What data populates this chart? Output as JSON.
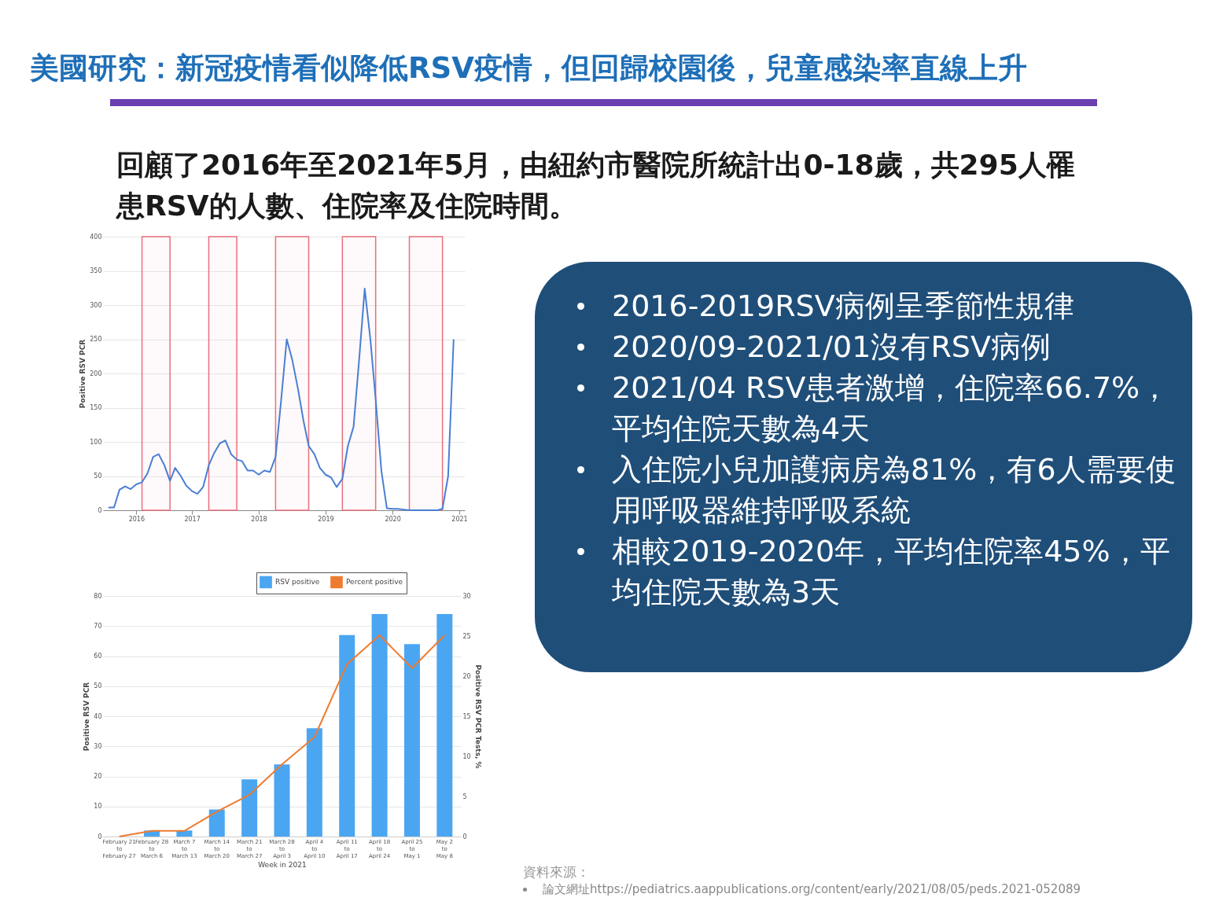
{
  "chart_data": [
    {
      "type": "line",
      "ylabel": "Positive RSV PCR",
      "color": "#4a7fd4",
      "x": [
        "2016-03",
        "2016-04",
        "2016-05",
        "2016-06",
        "2016-07",
        "2016-08",
        "2016-09",
        "2016-10",
        "2016-11",
        "2016-12",
        "2017-01",
        "2017-02",
        "2017-03",
        "2017-04",
        "2017-05",
        "2017-06",
        "2017-07",
        "2017-08",
        "2017-09",
        "2017-10",
        "2017-11",
        "2017-12",
        "2018-01",
        "2018-02",
        "2018-03",
        "2018-04",
        "2018-05",
        "2018-06",
        "2018-07",
        "2018-08",
        "2018-09",
        "2018-10",
        "2018-11",
        "2018-12",
        "2019-01",
        "2019-02",
        "2019-03",
        "2019-04",
        "2019-05",
        "2019-06",
        "2019-07",
        "2019-08",
        "2019-09",
        "2019-10",
        "2019-11",
        "2019-12",
        "2020-01",
        "2020-02",
        "2020-03",
        "2020-04",
        "2020-05",
        "2020-06",
        "2020-07",
        "2020-08",
        "2020-09",
        "2020-10",
        "2020-11",
        "2020-12",
        "2021-01",
        "2021-02",
        "2021-03",
        "2021-04",
        "2021-05"
      ],
      "values": [
        4,
        4,
        30,
        35,
        31,
        38,
        41,
        54,
        78,
        82,
        66,
        43,
        62,
        50,
        36,
        28,
        24,
        34,
        66,
        84,
        98,
        102,
        82,
        74,
        72,
        58,
        58,
        52,
        58,
        56,
        78,
        160,
        250,
        220,
        178,
        130,
        94,
        82,
        62,
        52,
        48,
        34,
        46,
        94,
        122,
        218,
        324,
        250,
        162,
        58,
        3,
        2,
        2,
        1,
        0,
        0,
        0,
        0,
        0,
        0,
        2,
        50,
        250
      ],
      "xlim": [
        "2016-02",
        "2021-07"
      ],
      "xticks": [
        {
          "value": "2016-08",
          "label": "2016"
        },
        {
          "value": "2017-06",
          "label": "2017"
        },
        {
          "value": "2018-06",
          "label": "2018"
        },
        {
          "value": "2019-06",
          "label": "2019"
        },
        {
          "value": "2020-06",
          "label": "2020"
        },
        {
          "value": "2021-06",
          "label": "2021"
        }
      ],
      "ylim": [
        0,
        400
      ],
      "yticks": [
        0,
        50,
        100,
        150,
        200,
        250,
        300,
        350,
        400
      ],
      "grid": "y",
      "bands": [
        {
          "axis": "x",
          "from": "2016-09",
          "to": "2017-02",
          "color": "#e8707e"
        },
        {
          "axis": "x",
          "from": "2017-09",
          "to": "2018-02",
          "color": "#e8707e"
        },
        {
          "axis": "x",
          "from": "2018-09",
          "to": "2019-03",
          "color": "#e8707e"
        },
        {
          "axis": "x",
          "from": "2019-09",
          "to": "2020-03",
          "color": "#e8707e"
        },
        {
          "axis": "x",
          "from": "2020-09",
          "to": "2021-03",
          "color": "#e8707e"
        }
      ]
    },
    {
      "type": "bar",
      "xlabel": "Week in 2021",
      "ylabel": "Positive RSV PCR",
      "y2label": "Positive RSV PCR Tests, %",
      "categories": [
        "February 21\nto\nFebruary 27",
        "February 28\nto\nMarch 6",
        "March 7\nto\nMarch 13",
        "March 14\nto\nMarch 20",
        "March 21\nto\nMarch 27",
        "March 28\nto\nApril 3",
        "April 4\nto\nApril 10",
        "April 11\nto\nApril 17",
        "April 18\nto\nApril 24",
        "April 25\nto\nMay 1",
        "May 2\nto\nMay 8"
      ],
      "series": [
        {
          "name": "RSV positive",
          "color": "#4ba6f2",
          "values": [
            0,
            2,
            2,
            9,
            19,
            24,
            36,
            67,
            74,
            64,
            74
          ]
        },
        {
          "name": "Percent positive",
          "type": "line",
          "axis": "y2",
          "color": "#ee7b30",
          "values": [
            0,
            0.7,
            0.7,
            3.1,
            5.2,
            9.0,
            12.4,
            21.5,
            25.1,
            21.0,
            25.1
          ]
        }
      ],
      "ylim": [
        0,
        80
      ],
      "yticks": [
        0,
        10,
        20,
        30,
        40,
        50,
        60,
        70,
        80
      ],
      "y2lim": [
        0,
        30
      ],
      "y2ticks": [
        0,
        5,
        10,
        15,
        20,
        25,
        30
      ],
      "grid": "y",
      "legend": "top right"
    },
    {
      "type": "other",
      "title": "美國研究：新冠疫情看似降低RSV疫情，但回歸校園後，兒童感染率直線上升",
      "subtitle": "回顧了2016年至2021年5月，由紐約市醫院所統計出0-18歲，共295人罹患RSV的人數、住院率及住院時間。",
      "annotations": [
        "2016-2019RSV病例呈季節性規律",
        "2020/09-2021/01沒有RSV病例",
        "2021/04 RSV患者激增，住院率66.7%，平均住院天數為4天",
        "入住院小兒加護病房為81%，有6人需要使用呼吸器維持呼吸系統",
        "相較2019-2020年，平均住院率45%，平均住院天數為3天",
        "資料來源：",
        "論文網址https://pediatrics.aappublications.org/content/early/2021/08/05/peds.2021-052089"
      ]
    }
  ]
}
